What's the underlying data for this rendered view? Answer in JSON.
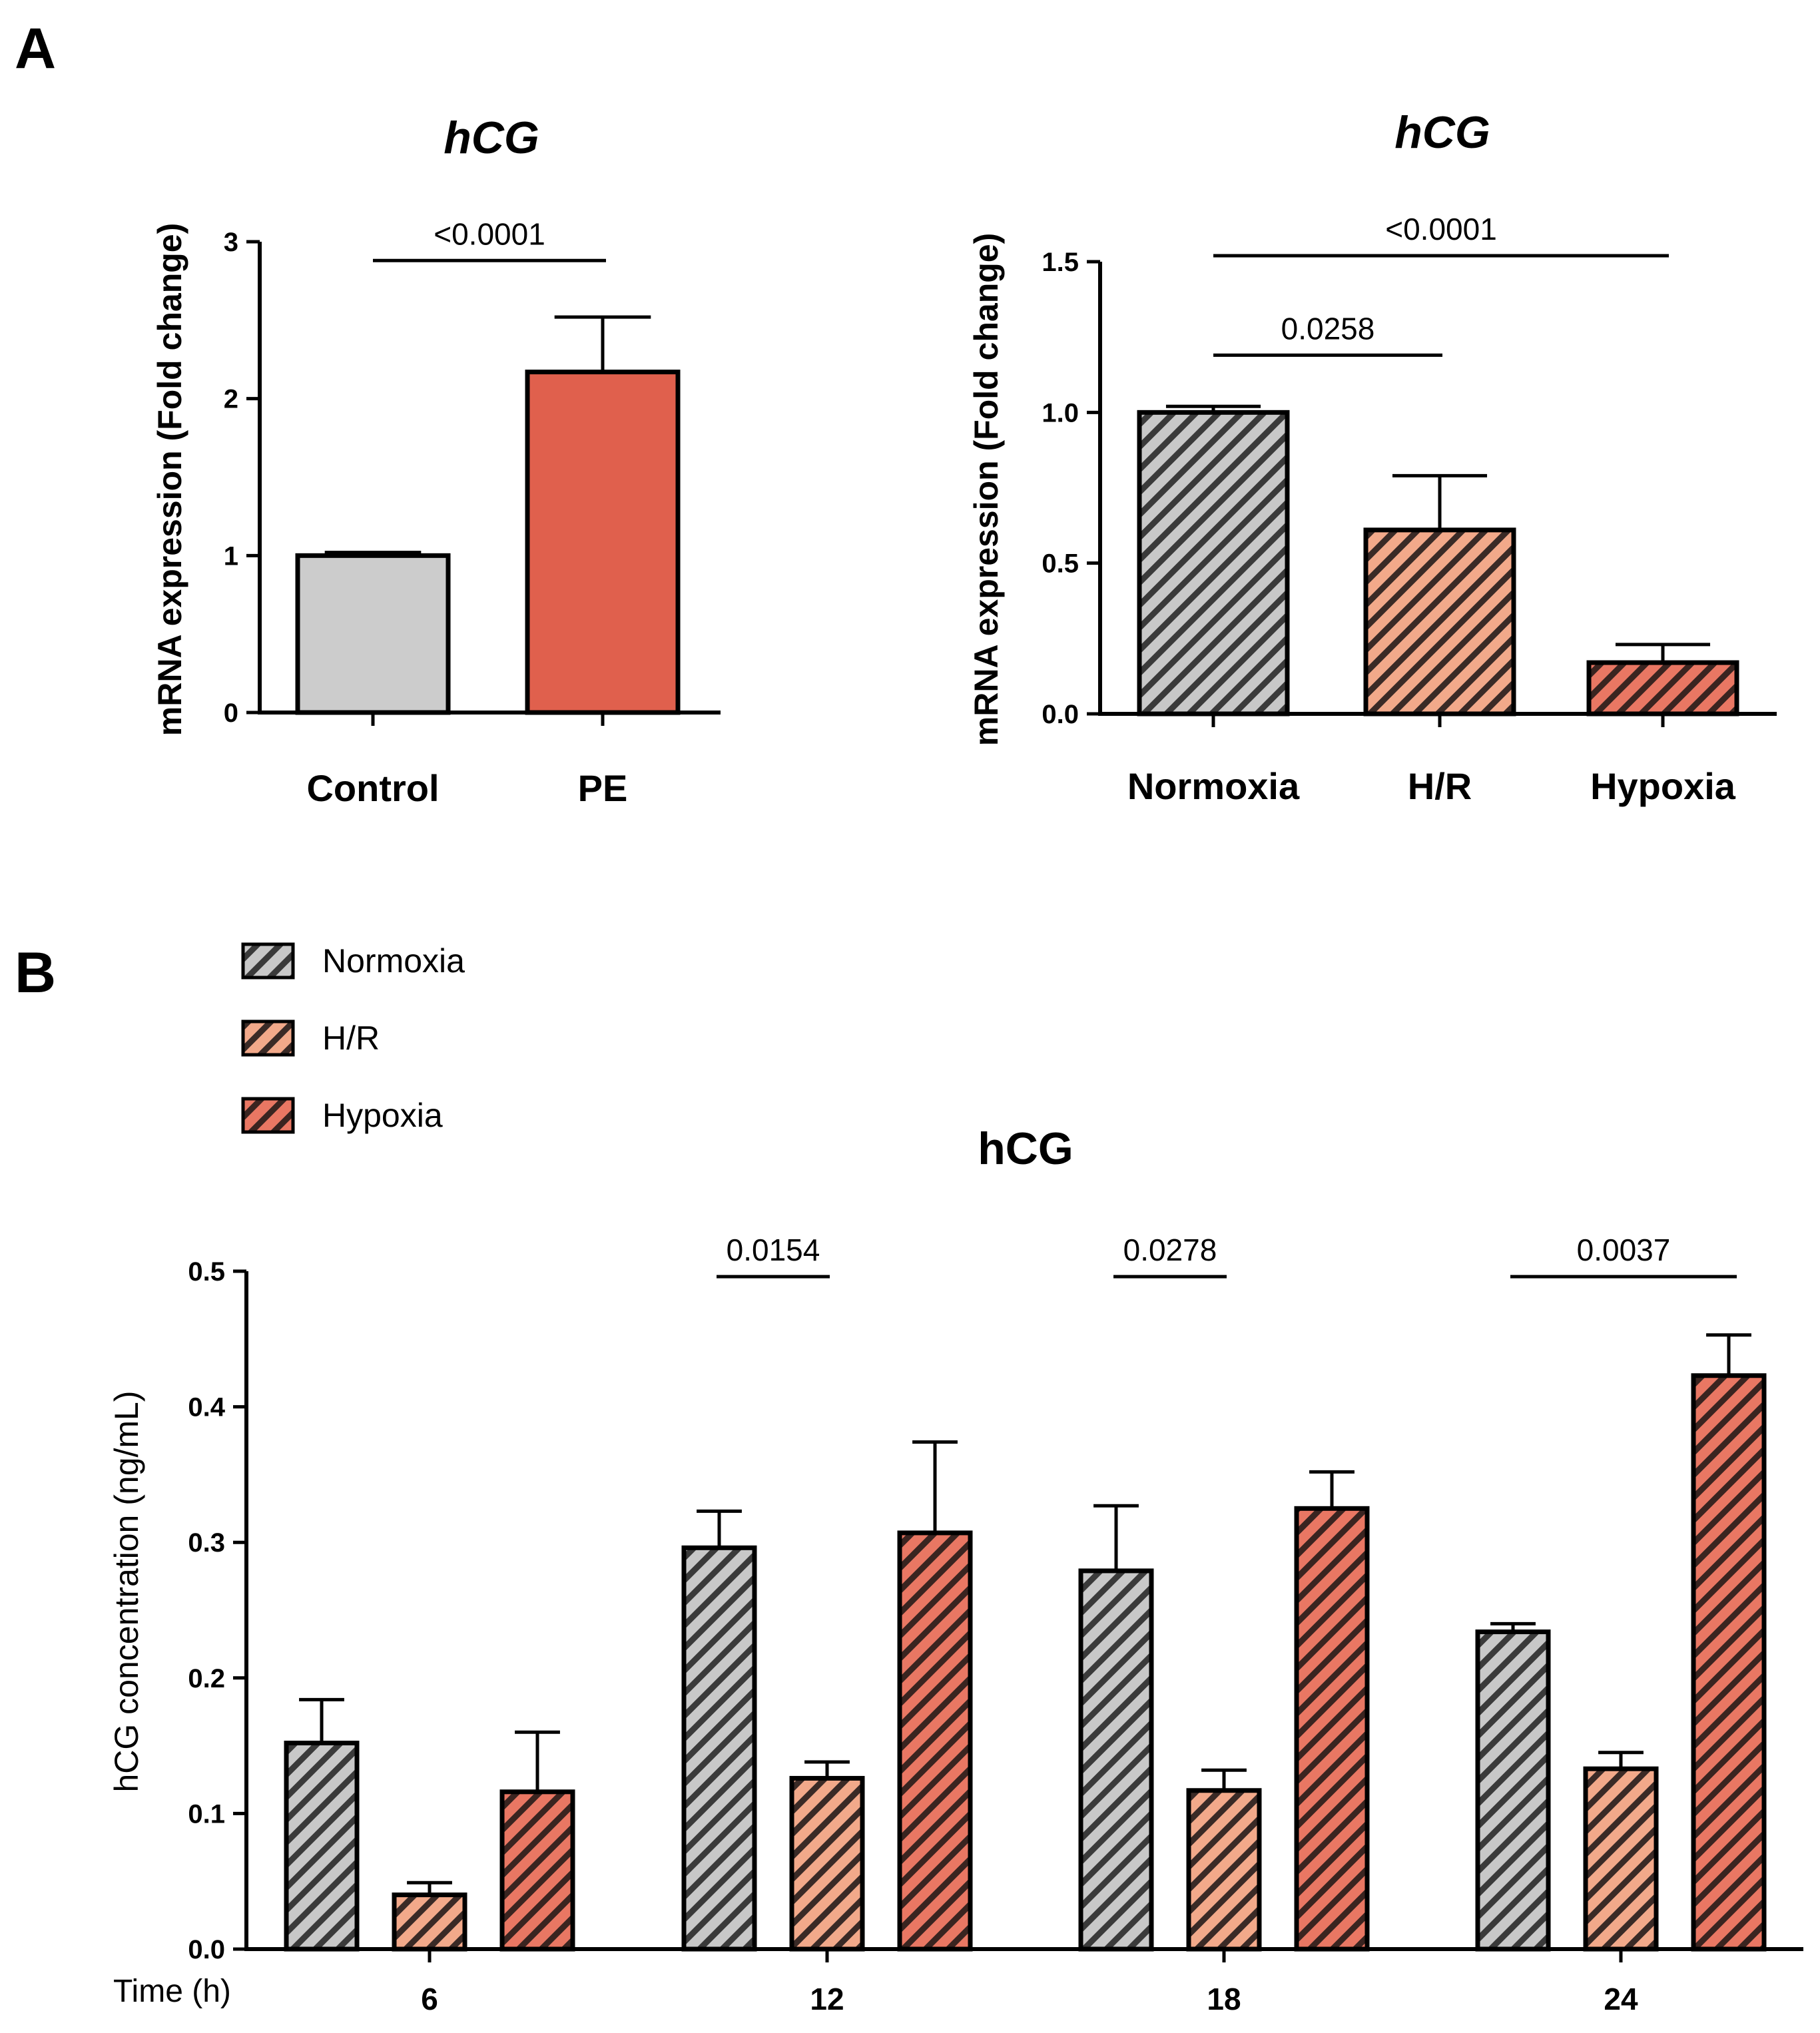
{
  "panels": {
    "a": "A",
    "b": "B"
  },
  "colors": {
    "normoxia": "#c8c8c8",
    "hr": "#f2a98a",
    "hypoxia": "#e97763",
    "pe": "#e0604d",
    "axis": "#000000"
  },
  "chart_data": [
    {
      "type": "bar",
      "title": "hCG",
      "ylabel": "mRNA expression (Fold change)",
      "categories": [
        "Control",
        "PE"
      ],
      "values": [
        1.0,
        2.17
      ],
      "errors": [
        0.02,
        0.35
      ],
      "yticks": [
        "0",
        "1",
        "2",
        "3"
      ],
      "ylim": [
        0,
        3
      ],
      "fills": [
        "solid",
        "solid"
      ],
      "colors": [
        "#cccccc",
        "#e0604d"
      ],
      "comparisons": [
        {
          "from": 0,
          "to": 1,
          "label": "<0.0001",
          "level": 2.88
        }
      ]
    },
    {
      "type": "bar",
      "title": "hCG",
      "ylabel": "mRNA expression (Fold change)",
      "categories": [
        "Normoxia",
        "H/R",
        "Hypoxia"
      ],
      "values": [
        1.0,
        0.61,
        0.17
      ],
      "errors": [
        0.02,
        0.18,
        0.06
      ],
      "yticks": [
        "0.0",
        "0.5",
        "1.0",
        "1.5"
      ],
      "ylim": [
        0,
        1.5
      ],
      "fills": [
        "hatch",
        "hatch",
        "hatch"
      ],
      "colors": [
        "#c8c8c8",
        "#f2a98a",
        "#e97763"
      ],
      "comparisons": [
        {
          "from": 0,
          "to": 1,
          "label": "0.0258",
          "level": 1.19
        },
        {
          "from": 0,
          "to": 2,
          "label": "<0.0001",
          "level": 1.52
        }
      ]
    },
    {
      "type": "bar",
      "title": "hCG",
      "ylabel": "hCG concentration (ng/mL)",
      "x_prefix": "Time (h)",
      "categories": [
        "6",
        "12",
        "18",
        "24"
      ],
      "series": [
        {
          "name": "Normoxia",
          "color": "#c8c8c8",
          "values": [
            0.152,
            0.296,
            0.279,
            0.234
          ],
          "errors": [
            0.032,
            0.027,
            0.048,
            0.006
          ]
        },
        {
          "name": "H/R",
          "color": "#f2a98a",
          "values": [
            0.04,
            0.126,
            0.117,
            0.133
          ],
          "errors": [
            0.009,
            0.012,
            0.015,
            0.012
          ]
        },
        {
          "name": "Hypoxia",
          "color": "#e97763",
          "values": [
            0.116,
            0.307,
            0.325,
            0.423
          ],
          "errors": [
            0.044,
            0.067,
            0.027,
            0.03
          ]
        }
      ],
      "yticks": [
        "0.0",
        "0.1",
        "0.2",
        "0.3",
        "0.4",
        "0.5"
      ],
      "ylim": [
        0,
        0.5
      ],
      "legend": "top-left",
      "comparisons": [
        {
          "group": 1,
          "from": 0,
          "to": 1,
          "label": "0.0154",
          "level": 0.496
        },
        {
          "group": 2,
          "from": 0,
          "to": 1,
          "label": "0.0278",
          "level": 0.496
        },
        {
          "group": 3,
          "from": 0,
          "to": 2,
          "label": "0.0037",
          "level": 0.496
        }
      ]
    }
  ]
}
